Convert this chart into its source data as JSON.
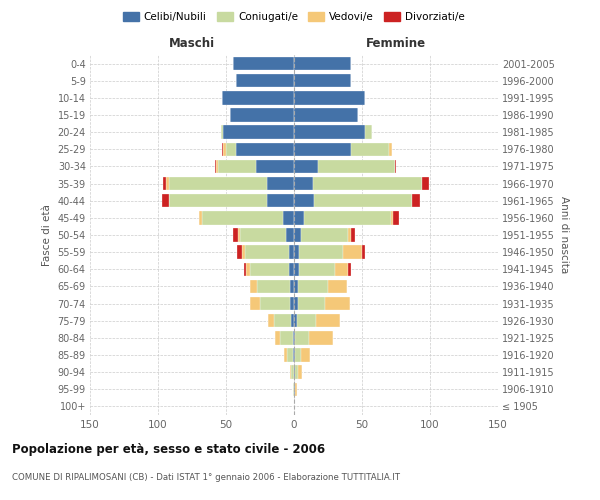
{
  "age_groups": [
    "100+",
    "95-99",
    "90-94",
    "85-89",
    "80-84",
    "75-79",
    "70-74",
    "65-69",
    "60-64",
    "55-59",
    "50-54",
    "45-49",
    "40-44",
    "35-39",
    "30-34",
    "25-29",
    "20-24",
    "15-19",
    "10-14",
    "5-9",
    "0-4"
  ],
  "birth_years": [
    "≤ 1905",
    "1906-1910",
    "1911-1915",
    "1916-1920",
    "1921-1925",
    "1926-1930",
    "1931-1935",
    "1936-1940",
    "1941-1945",
    "1946-1950",
    "1951-1955",
    "1956-1960",
    "1961-1965",
    "1966-1970",
    "1971-1975",
    "1976-1980",
    "1981-1985",
    "1986-1990",
    "1991-1995",
    "1996-2000",
    "2001-2005"
  ],
  "male": {
    "celibi": [
      0,
      0,
      0,
      1,
      1,
      2,
      3,
      3,
      4,
      4,
      6,
      8,
      20,
      20,
      28,
      43,
      52,
      47,
      53,
      43,
      45
    ],
    "coniugati": [
      0,
      1,
      2,
      4,
      9,
      13,
      22,
      24,
      28,
      32,
      34,
      60,
      72,
      72,
      28,
      7,
      2,
      0,
      0,
      0,
      0
    ],
    "vedovi": [
      0,
      0,
      1,
      2,
      4,
      4,
      7,
      5,
      3,
      2,
      1,
      2,
      0,
      2,
      1,
      2,
      0,
      0,
      0,
      0,
      0
    ],
    "divorziati": [
      0,
      0,
      0,
      0,
      0,
      0,
      0,
      0,
      2,
      4,
      4,
      0,
      5,
      2,
      1,
      1,
      0,
      0,
      0,
      0,
      0
    ]
  },
  "female": {
    "nubili": [
      0,
      1,
      1,
      1,
      1,
      2,
      3,
      3,
      4,
      4,
      5,
      7,
      15,
      14,
      18,
      42,
      52,
      47,
      52,
      42,
      42
    ],
    "coniugate": [
      0,
      0,
      2,
      4,
      10,
      14,
      20,
      22,
      26,
      32,
      35,
      64,
      72,
      80,
      56,
      28,
      5,
      0,
      0,
      0,
      0
    ],
    "vedove": [
      0,
      1,
      3,
      7,
      18,
      18,
      18,
      14,
      10,
      14,
      2,
      2,
      0,
      0,
      0,
      2,
      0,
      0,
      0,
      0,
      0
    ],
    "divorziate": [
      0,
      0,
      0,
      0,
      0,
      0,
      0,
      0,
      2,
      2,
      3,
      4,
      6,
      5,
      1,
      0,
      0,
      0,
      0,
      0,
      0
    ]
  },
  "colors": {
    "celibi_nubili": "#4472a8",
    "coniugati": "#c8daa0",
    "vedovi": "#f5c878",
    "divorziati": "#cc2222"
  },
  "xlim": 150,
  "title": "Popolazione per età, sesso e stato civile - 2006",
  "subtitle": "COMUNE DI RIPALIMOSANI (CB) - Dati ISTAT 1° gennaio 2006 - Elaborazione TUTTITALIA.IT",
  "ylabel_left": "Fasce di età",
  "ylabel_right": "Anni di nascita"
}
